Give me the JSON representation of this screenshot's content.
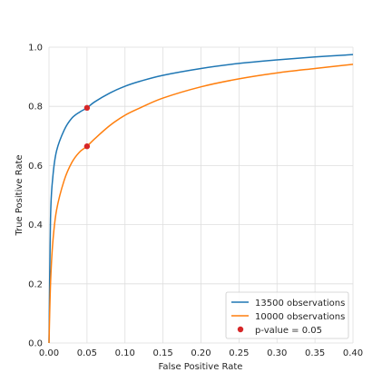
{
  "chart_data": {
    "type": "line",
    "title": "",
    "xlabel": "False Positive Rate",
    "ylabel": "True Positive Rate",
    "xlim": [
      0.0,
      0.4
    ],
    "ylim": [
      0.0,
      1.0
    ],
    "xticks": [
      "0.00",
      "0.05",
      "0.10",
      "0.15",
      "0.20",
      "0.25",
      "0.30",
      "0.35",
      "0.40"
    ],
    "yticks": [
      "0.0",
      "0.2",
      "0.4",
      "0.6",
      "0.8",
      "1.0"
    ],
    "grid": true,
    "legend_position": "bottom-right",
    "series": [
      {
        "name": "13500 observations",
        "color": "#1f77b4",
        "x": [
          0.0,
          0.002,
          0.005,
          0.01,
          0.02,
          0.03,
          0.04,
          0.05,
          0.06,
          0.08,
          0.1,
          0.12,
          0.15,
          0.2,
          0.25,
          0.3,
          0.35,
          0.4
        ],
        "y": [
          0.0,
          0.42,
          0.56,
          0.65,
          0.72,
          0.76,
          0.78,
          0.795,
          0.815,
          0.845,
          0.868,
          0.885,
          0.905,
          0.928,
          0.945,
          0.957,
          0.967,
          0.975
        ]
      },
      {
        "name": "10000 observations",
        "color": "#ff7f0e",
        "x": [
          0.0,
          0.002,
          0.005,
          0.01,
          0.02,
          0.03,
          0.04,
          0.05,
          0.06,
          0.08,
          0.1,
          0.12,
          0.15,
          0.2,
          0.25,
          0.3,
          0.35,
          0.4
        ],
        "y": [
          0.0,
          0.2,
          0.34,
          0.45,
          0.55,
          0.61,
          0.645,
          0.665,
          0.69,
          0.735,
          0.77,
          0.795,
          0.828,
          0.866,
          0.893,
          0.913,
          0.928,
          0.942
        ]
      }
    ],
    "points": {
      "name": "p-value = 0.05",
      "color": "#d62728",
      "x": [
        0.05,
        0.05
      ],
      "y": [
        0.795,
        0.665
      ]
    }
  }
}
